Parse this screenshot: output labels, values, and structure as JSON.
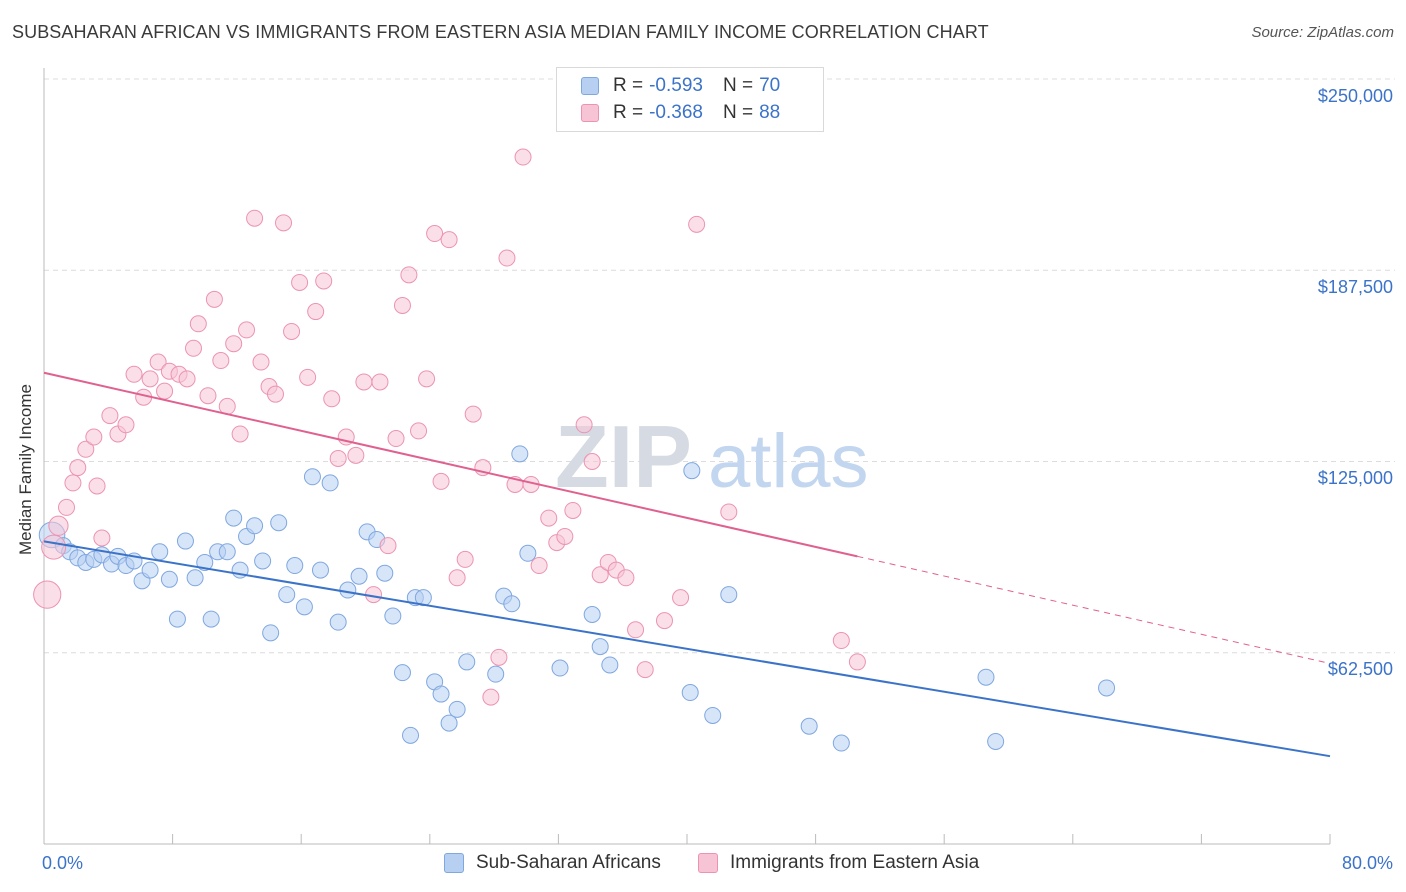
{
  "header": {
    "title": "SUBSAHARAN AFRICAN VS IMMIGRANTS FROM EASTERN ASIA MEDIAN FAMILY INCOME CORRELATION CHART",
    "source": "Source: ZipAtlas.com"
  },
  "watermark": {
    "part1": "ZIP",
    "part2": "atlas"
  },
  "colors": {
    "blue": "#3b73c9",
    "blue_fill": "#b7d0f2",
    "blue_edge": "#7fa7e0",
    "pink": "#e06090",
    "pink_fill": "#f7c4d5",
    "pink_edge": "#ec93b2",
    "tick_label": "#3b73c9"
  },
  "legend": {
    "rows": [
      {
        "r_label": "R = ",
        "r_value": "-0.593",
        "n_label": "N = ",
        "n_value": "70",
        "color": "blue"
      },
      {
        "r_label": "R = ",
        "r_value": "-0.368",
        "n_label": "N = ",
        "n_value": "88",
        "color": "pink"
      }
    ],
    "series_names": [
      "Sub-Saharan Africans",
      "Immigrants from Eastern Asia"
    ]
  },
  "chart_data": {
    "type": "scatter",
    "title": "SUBSAHARAN AFRICAN VS IMMIGRANTS FROM EASTERN ASIA MEDIAN FAMILY INCOME CORRELATION CHART",
    "xlabel": "",
    "ylabel": "Median Family Income",
    "xlim": [
      0,
      80
    ],
    "ylim": [
      0,
      265000
    ],
    "x_tick_labels": [
      "0.0%",
      "80.0%"
    ],
    "y_ticks": [
      62500,
      125000,
      187500,
      250000
    ],
    "y_tick_labels": [
      "$62,500",
      "$125,000",
      "$187,500",
      "$250,000"
    ],
    "grid": true,
    "legend_position": "top-center",
    "series": [
      {
        "name": "Sub-Saharan Africans",
        "color": "blue",
        "trend": {
          "x": [
            0,
            80
          ],
          "y": [
            98900,
            28700
          ]
        },
        "points": [
          [
            0.5,
            101000,
            1.6
          ],
          [
            1.2,
            97500,
            1
          ],
          [
            1.6,
            95500,
            1
          ],
          [
            2.1,
            93500,
            1
          ],
          [
            2.6,
            92000,
            1
          ],
          [
            3.1,
            93000,
            1
          ],
          [
            3.6,
            94500,
            1
          ],
          [
            4.2,
            91500,
            1
          ],
          [
            4.6,
            94000,
            1
          ],
          [
            5.1,
            91000,
            1
          ],
          [
            5.6,
            92500,
            1
          ],
          [
            6.1,
            86000,
            1
          ],
          [
            6.6,
            89500,
            1
          ],
          [
            7.2,
            95500,
            1
          ],
          [
            7.8,
            86500,
            1
          ],
          [
            8.3,
            73500,
            1
          ],
          [
            8.8,
            99000,
            1
          ],
          [
            9.4,
            87000,
            1
          ],
          [
            10.0,
            92000,
            1
          ],
          [
            10.4,
            73500,
            1
          ],
          [
            10.8,
            95500,
            1
          ],
          [
            11.4,
            95500,
            1
          ],
          [
            11.8,
            106500,
            1
          ],
          [
            12.2,
            89500,
            1
          ],
          [
            12.6,
            100500,
            1
          ],
          [
            13.1,
            104000,
            1
          ],
          [
            13.6,
            92500,
            1
          ],
          [
            14.1,
            69000,
            1
          ],
          [
            14.6,
            105000,
            1
          ],
          [
            15.1,
            81500,
            1
          ],
          [
            15.6,
            91000,
            1
          ],
          [
            16.2,
            77500,
            1
          ],
          [
            16.7,
            120000,
            1
          ],
          [
            17.2,
            89500,
            1
          ],
          [
            17.8,
            118000,
            1
          ],
          [
            18.3,
            72500,
            1
          ],
          [
            18.9,
            83000,
            1
          ],
          [
            19.6,
            87500,
            1
          ],
          [
            20.1,
            102000,
            1
          ],
          [
            20.7,
            99500,
            1
          ],
          [
            21.2,
            88500,
            1
          ],
          [
            21.7,
            74500,
            1
          ],
          [
            22.3,
            56000,
            1
          ],
          [
            22.8,
            35500,
            1
          ],
          [
            23.1,
            80500,
            1
          ],
          [
            23.6,
            80500,
            1
          ],
          [
            24.3,
            53000,
            1
          ],
          [
            24.7,
            49000,
            1
          ],
          [
            25.2,
            39500,
            1
          ],
          [
            25.7,
            44000,
            1
          ],
          [
            26.3,
            59500,
            1
          ],
          [
            28.1,
            55500,
            1
          ],
          [
            28.6,
            81000,
            1
          ],
          [
            29.1,
            78500,
            1
          ],
          [
            29.6,
            127500,
            1
          ],
          [
            30.1,
            95000,
            1
          ],
          [
            32.1,
            57500,
            1
          ],
          [
            34.1,
            75000,
            1
          ],
          [
            34.6,
            64500,
            1
          ],
          [
            35.2,
            58500,
            1
          ],
          [
            40.3,
            122000,
            1
          ],
          [
            40.2,
            49500,
            1
          ],
          [
            41.6,
            42000,
            1
          ],
          [
            42.6,
            81500,
            1
          ],
          [
            47.6,
            38500,
            1
          ],
          [
            49.6,
            33000,
            1
          ],
          [
            58.6,
            54500,
            1
          ],
          [
            59.2,
            33500,
            1
          ],
          [
            66.1,
            51000,
            1
          ]
        ]
      },
      {
        "name": "Immigrants from Eastern Asia",
        "color": "pink",
        "trend": {
          "x": [
            0,
            50.6
          ],
          "y": [
            154000,
            94000
          ]
        },
        "trend_dashed": {
          "x": [
            50.6,
            80
          ],
          "y": [
            94000,
            59000
          ]
        },
        "points": [
          [
            0.2,
            81500,
            1.7
          ],
          [
            0.6,
            97000,
            1.5
          ],
          [
            0.9,
            104000,
            1.2
          ],
          [
            1.4,
            110000,
            1
          ],
          [
            1.8,
            118000,
            1
          ],
          [
            2.1,
            123000,
            1
          ],
          [
            2.6,
            129000,
            1
          ],
          [
            3.1,
            133000,
            1
          ],
          [
            3.3,
            117000,
            1
          ],
          [
            3.6,
            100000,
            1
          ],
          [
            4.1,
            140000,
            1
          ],
          [
            4.6,
            134000,
            1
          ],
          [
            5.1,
            137000,
            1
          ],
          [
            5.6,
            153500,
            1
          ],
          [
            6.2,
            146000,
            1
          ],
          [
            6.6,
            152000,
            1
          ],
          [
            7.1,
            157500,
            1
          ],
          [
            7.5,
            148000,
            1
          ],
          [
            7.8,
            154500,
            1
          ],
          [
            8.4,
            153500,
            1
          ],
          [
            8.9,
            152000,
            1
          ],
          [
            9.3,
            162000,
            1
          ],
          [
            9.6,
            170000,
            1
          ],
          [
            10.2,
            146500,
            1
          ],
          [
            10.6,
            178000,
            1
          ],
          [
            11.0,
            158000,
            1
          ],
          [
            11.4,
            143000,
            1
          ],
          [
            11.8,
            163500,
            1
          ],
          [
            12.2,
            134000,
            1
          ],
          [
            12.6,
            168000,
            1
          ],
          [
            13.1,
            204500,
            1
          ],
          [
            13.5,
            157500,
            1
          ],
          [
            14.0,
            149500,
            1
          ],
          [
            14.4,
            147000,
            1
          ],
          [
            14.9,
            203000,
            1
          ],
          [
            15.4,
            167500,
            1
          ],
          [
            15.9,
            183500,
            1
          ],
          [
            16.4,
            152500,
            1
          ],
          [
            16.9,
            174000,
            1
          ],
          [
            17.4,
            184000,
            1
          ],
          [
            17.9,
            145500,
            1
          ],
          [
            18.3,
            126000,
            1
          ],
          [
            18.8,
            133000,
            1
          ],
          [
            19.4,
            127000,
            1
          ],
          [
            19.9,
            151000,
            1
          ],
          [
            20.5,
            81500,
            1
          ],
          [
            20.9,
            151000,
            1
          ],
          [
            21.4,
            97500,
            1
          ],
          [
            21.9,
            132500,
            1
          ],
          [
            22.3,
            176000,
            1
          ],
          [
            22.7,
            186000,
            1
          ],
          [
            23.3,
            135000,
            1
          ],
          [
            23.8,
            152000,
            1
          ],
          [
            24.3,
            199500,
            1
          ],
          [
            24.7,
            118500,
            1
          ],
          [
            25.2,
            197500,
            1
          ],
          [
            25.7,
            87000,
            1
          ],
          [
            26.2,
            93000,
            1
          ],
          [
            26.7,
            140500,
            1
          ],
          [
            27.3,
            123000,
            1
          ],
          [
            27.8,
            48000,
            1
          ],
          [
            28.3,
            61000,
            1
          ],
          [
            28.8,
            191500,
            1
          ],
          [
            29.3,
            117500,
            1
          ],
          [
            29.8,
            224500,
            1
          ],
          [
            30.3,
            117500,
            1
          ],
          [
            30.8,
            91000,
            1
          ],
          [
            31.4,
            106500,
            1
          ],
          [
            31.9,
            98500,
            1
          ],
          [
            32.4,
            100500,
            1
          ],
          [
            32.9,
            109000,
            1
          ],
          [
            33.6,
            137000,
            1
          ],
          [
            34.1,
            125000,
            1
          ],
          [
            34.6,
            88000,
            1
          ],
          [
            35.1,
            92000,
            1
          ],
          [
            35.6,
            89500,
            1
          ],
          [
            36.2,
            87000,
            1
          ],
          [
            36.8,
            70000,
            1
          ],
          [
            37.4,
            57000,
            1
          ],
          [
            38.6,
            73000,
            1
          ],
          [
            39.6,
            80500,
            1
          ],
          [
            40.6,
            202500,
            1
          ],
          [
            42.6,
            108500,
            1
          ],
          [
            49.6,
            66500,
            1
          ],
          [
            50.6,
            59500,
            1
          ]
        ]
      }
    ]
  }
}
